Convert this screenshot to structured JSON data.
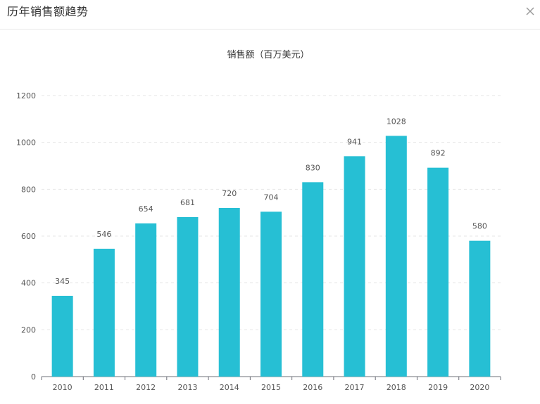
{
  "dialog": {
    "title": "历年销售额趋势"
  },
  "chart_data": {
    "type": "bar",
    "title": "销售额（百万美元）",
    "categories": [
      "2010",
      "2011",
      "2012",
      "2013",
      "2014",
      "2015",
      "2016",
      "2017",
      "2018",
      "2019",
      "2020"
    ],
    "values": [
      345,
      546,
      654,
      681,
      720,
      704,
      830,
      941,
      1028,
      892,
      580
    ],
    "ylim": [
      0,
      1200
    ],
    "yticks": [
      0,
      200,
      400,
      600,
      800,
      1000,
      1200
    ],
    "grid": true,
    "data_labels": true,
    "bar_color": "#26bfd4",
    "grid_color": "#e6e6e6",
    "axis_color": "#6e7079",
    "text_color": "#555555"
  }
}
